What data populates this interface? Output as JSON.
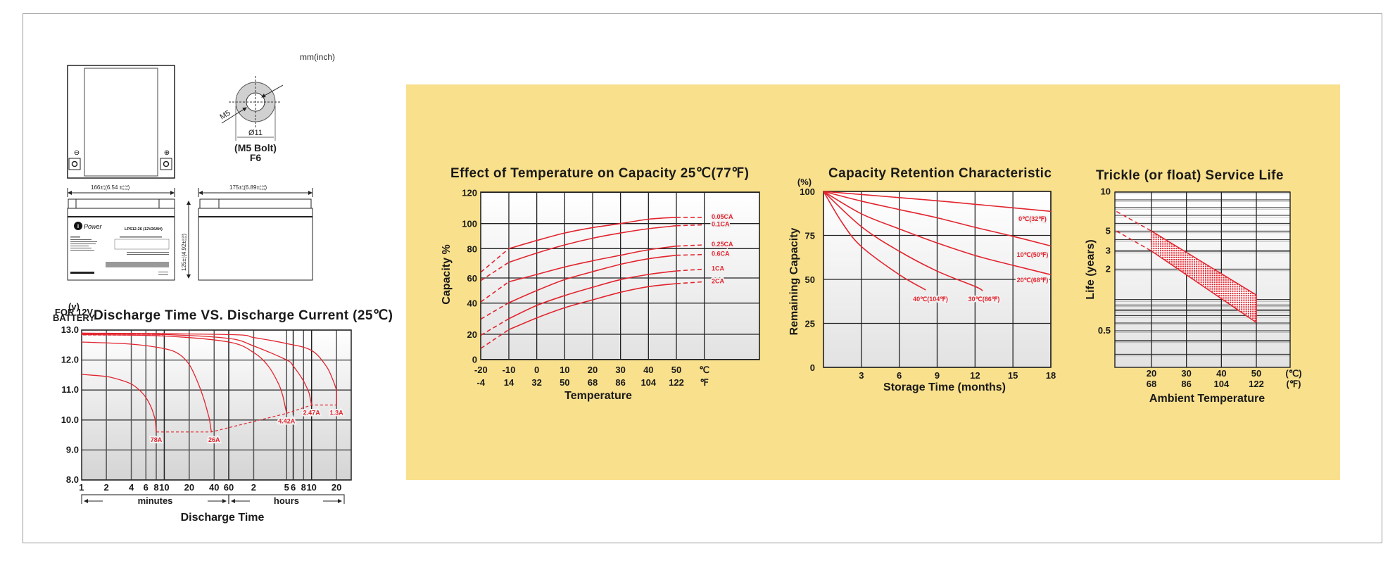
{
  "units_note": "mm(inch)",
  "battery": {
    "neg_symbol": "⊖",
    "pos_symbol": "⊕",
    "thread": "M5",
    "hole_dia": "Ø11",
    "bolt_label": "(M5 Bolt)",
    "terminal": "F6",
    "logo": "Power",
    "logo_mark": "i",
    "model": "LPS12-26 (12V26AH)",
    "width_dim": {
      "mm": "166±",
      "mm_up": "2",
      "mm_dn": "1",
      "inch": "(6.54 ±",
      "in_up": "0.08",
      "in_dn": "0.04",
      "close": ")"
    },
    "length_dim": {
      "mm": "175±",
      "mm_up": "2",
      "mm_dn": "1",
      "inch": "(6.89±",
      "in_up": "0.08",
      "in_dn": "0.04",
      "close": ")"
    },
    "height_dim": {
      "mm": "125±",
      "mm_up": "2",
      "mm_dn": "1",
      "inch": "(4.92±",
      "in_up": "0.08",
      "in_dn": "0.04",
      "close": ")"
    }
  },
  "colors": {
    "panel": "#F9E08C",
    "curve": "#e2252f"
  },
  "chart_data": [
    {
      "id": "discharge",
      "type": "line",
      "title": "Discharge Time VS. Discharge Current (25℃)",
      "y_unit_lines": [
        "(v)",
        "FOR 12V",
        "BATTERY"
      ],
      "ylim": [
        8,
        13
      ],
      "yticks": [
        {
          "v": 13,
          "label": "13.0"
        },
        {
          "v": 12,
          "label": "12.0"
        },
        {
          "v": 11,
          "label": "11.0"
        },
        {
          "v": 10,
          "label": "10.0"
        },
        {
          "v": 9,
          "label": "9.0"
        },
        {
          "v": 8,
          "label": "8.0"
        }
      ],
      "xscale": "log (minutes)",
      "xlim_minutes": [
        1,
        1800
      ],
      "xticks": [
        {
          "min": 1,
          "label": "1"
        },
        {
          "min": 2,
          "label": "2"
        },
        {
          "min": 4,
          "label": "4"
        },
        {
          "min": 6,
          "label": "6"
        },
        {
          "min": 8,
          "label": "8"
        },
        {
          "min": 10,
          "label": "10"
        },
        {
          "min": 20,
          "label": "20"
        },
        {
          "min": 40,
          "label": "40"
        },
        {
          "min": 60,
          "label": "60"
        },
        {
          "min": 120,
          "label": "2"
        },
        {
          "min": 300,
          "label": "5"
        },
        {
          "min": 360,
          "label": "6"
        },
        {
          "min": 480,
          "label": "8"
        },
        {
          "min": 600,
          "label": "10"
        },
        {
          "min": 1200,
          "label": "20"
        }
      ],
      "x_groups": [
        "minutes",
        "hours"
      ],
      "xlabel": "Discharge Time",
      "series": [
        {
          "name": "78A",
          "points": [
            [
              1,
              11.52
            ],
            [
              2,
              11.45
            ],
            [
              3,
              11.33
            ],
            [
              4,
              11.2
            ],
            [
              5,
              11.0
            ],
            [
              6,
              10.75
            ],
            [
              7,
              10.4
            ],
            [
              7.8,
              10.0
            ],
            [
              8,
              9.6
            ]
          ]
        },
        {
          "name": "26A",
          "points": [
            [
              1,
              12.6
            ],
            [
              4,
              12.53
            ],
            [
              10,
              12.38
            ],
            [
              15,
              12.2
            ],
            [
              20,
              11.85
            ],
            [
              25,
              11.3
            ],
            [
              30,
              10.7
            ],
            [
              35,
              10.05
            ],
            [
              37,
              9.6
            ]
          ]
        },
        {
          "name": "4.42A",
          "points": [
            [
              1,
              12.85
            ],
            [
              10,
              12.8
            ],
            [
              60,
              12.6
            ],
            [
              120,
              12.25
            ],
            [
              180,
              11.8
            ],
            [
              240,
              11.2
            ],
            [
              270,
              10.8
            ],
            [
              300,
              10.22
            ]
          ]
        },
        {
          "name": "2.47A",
          "points": [
            [
              1,
              12.88
            ],
            [
              10,
              12.85
            ],
            [
              60,
              12.72
            ],
            [
              120,
              12.47
            ],
            [
              300,
              12.0
            ],
            [
              360,
              11.8
            ],
            [
              480,
              11.3
            ],
            [
              560,
              10.9
            ],
            [
              600,
              10.5
            ]
          ]
        },
        {
          "name": "1.3A",
          "points": [
            [
              1,
              12.9
            ],
            [
              60,
              12.85
            ],
            [
              120,
              12.75
            ],
            [
              300,
              12.55
            ],
            [
              600,
              12.32
            ],
            [
              900,
              11.8
            ],
            [
              1080,
              11.35
            ],
            [
              1200,
              11.0
            ],
            [
              1200,
              10.5
            ]
          ]
        }
      ],
      "cutoff": [
        [
          8,
          9.6
        ],
        [
          37,
          9.6
        ],
        [
          300,
          10.22
        ],
        [
          600,
          10.5
        ],
        [
          1200,
          10.5
        ]
      ]
    },
    {
      "id": "temperature",
      "type": "line",
      "title": "Effect of Temperature on Capacity  25℃(77℉)",
      "ylabel": "Capacity %",
      "xlabel": "Temperature",
      "ylim": [
        0,
        120
      ],
      "yticks": [
        {
          "v": 120,
          "label": "120"
        },
        {
          "v": 100,
          "label": "100"
        },
        {
          "v": 80,
          "label": "80"
        },
        {
          "v": 60,
          "label": "60"
        },
        {
          "v": 40,
          "label": "40"
        },
        {
          "v": 20,
          "label": "20"
        },
        {
          "v": 0,
          "label": "0"
        }
      ],
      "xticks_c": [
        "-20",
        "-10",
        "0",
        "10",
        "20",
        "30",
        "40",
        "50"
      ],
      "xticks_f": [
        "-4",
        "14",
        "32",
        "50",
        "68",
        "86",
        "104",
        "122"
      ],
      "unit_c": "℃",
      "unit_f": "℉",
      "x": [
        -20,
        -10,
        0,
        10,
        20,
        30,
        40,
        50,
        60
      ],
      "series": [
        {
          "name": "0.05CA",
          "values": [
            64,
            80,
            86.5,
            92.5,
            96.8,
            100,
            102.8,
            104,
            104
          ]
        },
        {
          "name": "0.1CA",
          "values": [
            58,
            70.7,
            77,
            83,
            88.3,
            92.5,
            95.9,
            98.3,
            99
          ]
        },
        {
          "name": "0.25CA",
          "values": [
            41,
            57,
            62.4,
            67.5,
            71.7,
            75.5,
            79.2,
            82,
            83
          ]
        },
        {
          "name": "0.6CA",
          "values": [
            29.8,
            40.3,
            50,
            58.7,
            64.3,
            69.3,
            73.1,
            75.5,
            76
          ]
        },
        {
          "name": "1CA",
          "values": [
            19.3,
            30,
            38.5,
            46,
            52.6,
            58.7,
            62.4,
            64.8,
            66
          ]
        },
        {
          "name": "2CA",
          "values": [
            8.8,
            23,
            30.5,
            37,
            42.6,
            48.6,
            53.1,
            55.5,
            57
          ]
        }
      ],
      "dashed_note": "segments -20→-10 and 50→60 are dashed (extrapolated)"
    },
    {
      "id": "retention",
      "type": "line",
      "title": "Capacity Retention Characteristic",
      "y_unit": "(%)",
      "ylabel": "Remaining Capacity",
      "xlabel": "Storage Time (months)",
      "xlim": [
        0,
        18
      ],
      "ylim": [
        0,
        100
      ],
      "yticks": [
        "100",
        "75",
        "50",
        "25",
        "0"
      ],
      "xticks": [
        "3",
        "6",
        "9",
        "12",
        "15",
        "18"
      ],
      "series": [
        {
          "name": "0℃(32℉)",
          "points": [
            [
              0,
              100
            ],
            [
              6,
              96.5
            ],
            [
              9,
              94.7
            ],
            [
              12,
              92.7
            ],
            [
              18,
              88.7
            ]
          ]
        },
        {
          "name": "10℃(50℉)",
          "points": [
            [
              0,
              100
            ],
            [
              3,
              94.5
            ],
            [
              6,
              89.7
            ],
            [
              9,
              85
            ],
            [
              12,
              79.6
            ],
            [
              15,
              74.5
            ],
            [
              18,
              69
            ]
          ]
        },
        {
          "name": "20℃(68℉)",
          "points": [
            [
              0,
              100
            ],
            [
              3,
              87.3
            ],
            [
              6,
              78.7
            ],
            [
              9,
              70.7
            ],
            [
              12,
              63.6
            ],
            [
              15,
              58
            ],
            [
              18,
              52.7
            ]
          ]
        },
        {
          "name": "30℃(86℉)",
          "points": [
            [
              0,
              100
            ],
            [
              3,
              80
            ],
            [
              6,
              66
            ],
            [
              9,
              54.7
            ],
            [
              12,
              46
            ],
            [
              12.6,
              43.6
            ]
          ]
        },
        {
          "name": "40℃(104℉)",
          "points": [
            [
              0,
              100
            ],
            [
              1.5,
              82
            ],
            [
              3,
              68.7
            ],
            [
              6,
              52.7
            ],
            [
              8.1,
              44
            ]
          ]
        }
      ]
    },
    {
      "id": "service_life",
      "type": "area",
      "title": "Trickle (or float) Service Life",
      "ylabel": "Life (years)",
      "xlabel": "Ambient Temperature",
      "yticks": [
        {
          "v": 10,
          "label": "10"
        },
        {
          "v": 5,
          "label": "5"
        },
        {
          "v": 3,
          "label": "3"
        },
        {
          "v": 2,
          "label": "2"
        },
        {
          "v": 0.5,
          "label": "0.5"
        }
      ],
      "xticks_c": [
        "20",
        "30",
        "40",
        "50"
      ],
      "xticks_f": [
        "68",
        "86",
        "104",
        "122"
      ],
      "unit_c": "(℃)",
      "unit_f": "(℉)",
      "band_upper": [
        [
          10,
          7.5
        ],
        [
          20,
          5
        ],
        [
          50,
          1.37
        ]
      ],
      "band_lower": [
        [
          10,
          5
        ],
        [
          20,
          3
        ],
        [
          50,
          0.7
        ]
      ],
      "dashed_note": "10→20 ℃ segment dashed; 20–50 ℃ band hatched"
    }
  ]
}
